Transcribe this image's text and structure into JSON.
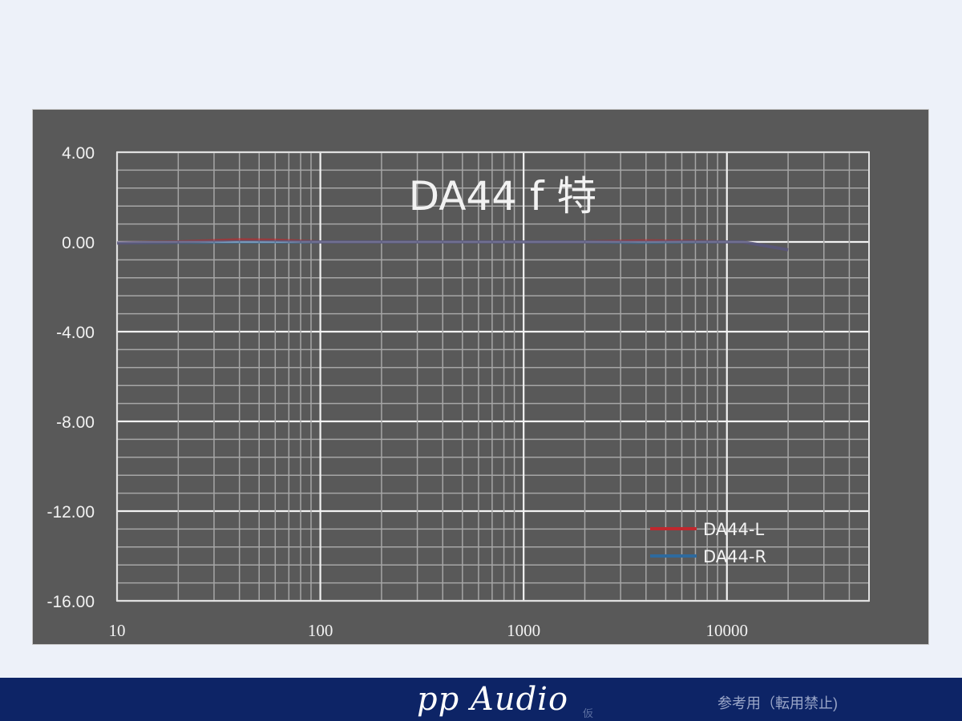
{
  "chart_data": {
    "type": "line",
    "title": "DA44 f 特",
    "xlabel": "",
    "ylabel": "",
    "x_scale": "log",
    "xlim": [
      10,
      50000
    ],
    "ylim": [
      -16,
      4
    ],
    "x_ticks": [
      "10",
      "100",
      "1000",
      "10000"
    ],
    "y_ticks": [
      "4.00",
      "0.00",
      "-4.00",
      "-8.00",
      "-12.00",
      "-16.00"
    ],
    "grid": true,
    "legend_position": "bottom-right",
    "x": [
      10,
      20,
      40,
      60,
      100,
      200,
      500,
      1000,
      2000,
      4000,
      6000,
      10000,
      12000,
      20000
    ],
    "series": [
      {
        "name": "DA44-L",
        "color": "#c0282e",
        "values": [
          -0.05,
          0.0,
          0.1,
          0.08,
          0.0,
          0.0,
          0.0,
          0.0,
          0.0,
          0.05,
          0.03,
          0.0,
          0.0,
          -0.35
        ]
      },
      {
        "name": "DA44-R",
        "color": "#2e6a9e",
        "values": [
          -0.05,
          -0.02,
          0.0,
          0.0,
          0.0,
          0.0,
          0.0,
          0.0,
          0.0,
          -0.02,
          0.0,
          0.0,
          0.0,
          -0.35
        ]
      }
    ]
  },
  "footer": {
    "brand": "pp Audio",
    "brand_mark": "仮",
    "notice": "参考用（転用禁止)"
  }
}
